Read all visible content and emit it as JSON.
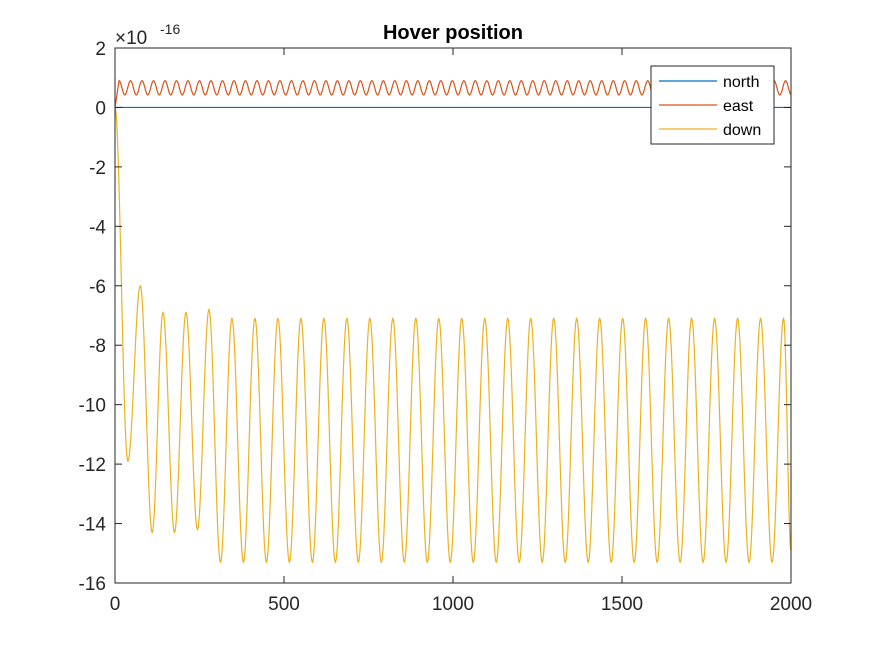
{
  "chart_data": {
    "type": "line",
    "title": "Hover position",
    "xlabel": "",
    "ylabel": "",
    "xlim": [
      0,
      2000
    ],
    "ylim": [
      -16,
      2
    ],
    "y_exponent_base": "×10",
    "y_exponent_power": "-16",
    "x_ticks": [
      0,
      500,
      1000,
      1500,
      2000
    ],
    "y_ticks": [
      2,
      0,
      -2,
      -4,
      -6,
      -8,
      -10,
      -12,
      -14,
      -16
    ],
    "x_tick_labels": [
      "0",
      "500",
      "1000",
      "1500",
      "2000"
    ],
    "y_tick_labels": [
      "2",
      "0",
      "-2",
      "-4",
      "-6",
      "-8",
      "-10",
      "-12",
      "-14",
      "-16"
    ],
    "grid": false,
    "legend_position": "top-right",
    "series": [
      {
        "name": "north",
        "color": "#0072BD",
        "x": [
          0,
          2000
        ],
        "values": [
          0,
          0
        ]
      },
      {
        "name": "east",
        "color": "#D95319",
        "x": [
          0,
          40,
          60,
          80,
          110,
          150,
          200,
          300,
          400,
          500,
          600,
          700,
          800,
          900,
          1000,
          1100,
          1200,
          1300,
          1400,
          1500,
          1600,
          1700,
          1800,
          1900,
          1960,
          1980,
          2000
        ],
        "values": [
          0,
          0.7,
          0.45,
          0.8,
          0.5,
          0.85,
          0.45,
          0.85,
          0.9,
          0.9,
          0.9,
          0.9,
          0.9,
          0.9,
          0.9,
          0.9,
          0.9,
          0.9,
          0.9,
          0.9,
          0.9,
          0.9,
          0.9,
          0.9,
          0.45,
          0.85,
          0.85
        ],
        "oscillation": {
          "period": 34,
          "min": 0.42,
          "max": 0.9
        }
      },
      {
        "name": "down",
        "color": "#EDB120",
        "x": [
          0,
          38,
          75,
          110,
          142,
          176,
          210,
          244,
          278,
          312,
          346,
          380,
          414,
          448,
          482,
          516,
          550,
          584,
          618,
          652,
          686,
          720,
          754,
          788,
          822,
          856,
          890,
          924,
          958,
          992,
          1026,
          1060,
          1094,
          1128,
          1162,
          1196,
          1230,
          1264,
          1298,
          1332,
          1366,
          1400,
          1434,
          1468,
          1502,
          1536,
          1570,
          1604,
          1638,
          1672,
          1706,
          1740,
          1774,
          1808,
          1842,
          1876,
          1910,
          1944,
          1978,
          2000
        ],
        "values": [
          0,
          -11.9,
          -6.0,
          -14.3,
          -6.9,
          -14.3,
          -6.9,
          -14.2,
          -6.8,
          -15.3,
          -7.1,
          -15.3,
          -7.1,
          -15.3,
          -7.1,
          -15.3,
          -7.1,
          -15.3,
          -7.1,
          -15.3,
          -7.1,
          -15.3,
          -7.1,
          -15.3,
          -7.1,
          -15.3,
          -7.1,
          -15.3,
          -7.1,
          -15.3,
          -7.1,
          -15.3,
          -7.1,
          -15.3,
          -7.1,
          -15.3,
          -7.1,
          -15.3,
          -7.1,
          -15.3,
          -7.1,
          -15.3,
          -7.1,
          -15.3,
          -7.1,
          -15.3,
          -7.1,
          -15.3,
          -7.1,
          -15.3,
          -7.1,
          -15.3,
          -7.1,
          -15.3,
          -7.1,
          -15.3,
          -7.1,
          -15.3,
          -7.1,
          -14.9
        ]
      }
    ]
  }
}
